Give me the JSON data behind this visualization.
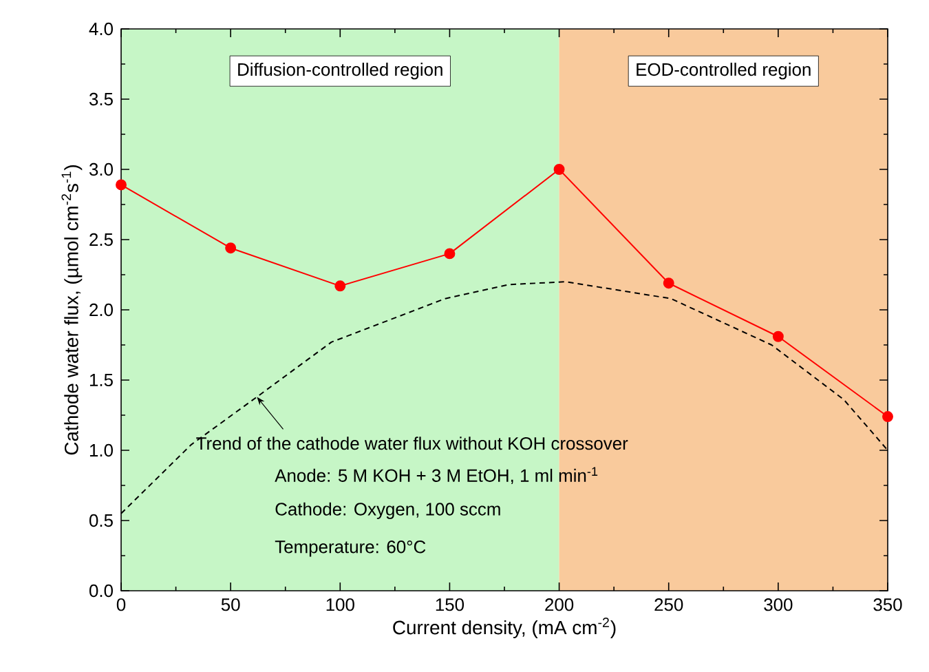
{
  "chart_data": {
    "type": "line",
    "xlabel": "Current density, (mA cm$^{-2}$)",
    "ylabel": "Cathode water flux, (µmol cm$^{-2}$s$^{-1}$)",
    "xlim": [
      0,
      350
    ],
    "xticks": [
      0,
      50,
      100,
      150,
      200,
      250,
      300,
      350
    ],
    "ylim": [
      0,
      4.0
    ],
    "yticks": [
      {
        "value": 0,
        "label": "0.0"
      },
      0.5,
      {
        "value": 1,
        "label": "1.0"
      },
      1.5,
      {
        "value": 2,
        "label": "2.0"
      },
      2.5,
      {
        "value": 3,
        "label": "3.0"
      },
      3.5,
      {
        "value": 4,
        "label": "4.0"
      }
    ],
    "grid": false,
    "bands": [
      {
        "axis": "x",
        "from": 0,
        "to": 200,
        "label": "Diffusion-controlled region",
        "color": "#c6f6c6"
      },
      {
        "axis": "x",
        "from": 200,
        "to": 350,
        "label": "EOD-controlled region",
        "color": "#f9ca9c"
      }
    ],
    "series": [
      {
        "color": "#ff0000",
        "marker": "circle",
        "line_style": "solid",
        "x": [
          0,
          50,
          100,
          150,
          200,
          250,
          300,
          350
        ],
        "values": [
          2.89,
          2.44,
          2.17,
          2.4,
          3.0,
          2.19,
          1.81,
          1.24
        ]
      },
      {
        "color": "#000000",
        "marker": "none",
        "line_style": "dashed",
        "x": [
          0,
          32,
          62,
          96,
          148,
          177,
          203,
          251,
          297,
          330,
          350
        ],
        "values": [
          0.55,
          1.04,
          1.38,
          1.77,
          2.08,
          2.18,
          2.2,
          2.08,
          1.75,
          1.36,
          1.0
        ]
      }
    ],
    "annotations": [
      {
        "text": "Trend of the cathode water flux without KOH crossover",
        "x": 62,
        "y": 1.38
      },
      "Anode:  5 M KOH + 3 M EtOH, 1 ml min$^{-1}$",
      "Cathode: Oxygen, 100 sccm",
      "Temperature: 60°C"
    ]
  }
}
